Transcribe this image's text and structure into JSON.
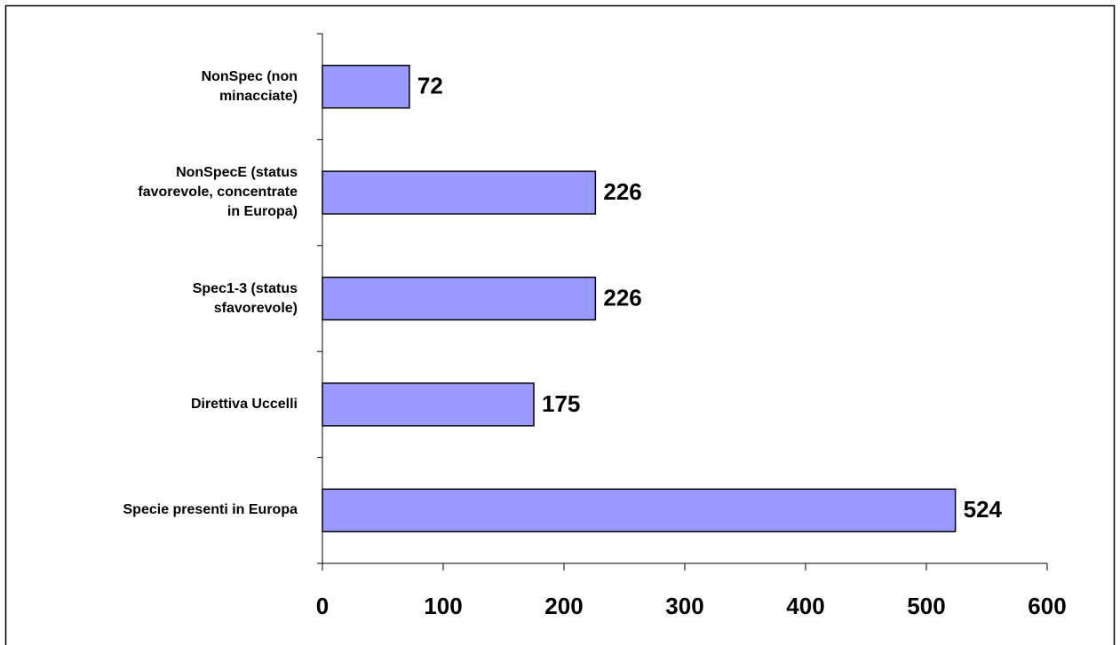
{
  "chart_data": {
    "type": "bar",
    "orientation": "horizontal",
    "categories": [
      "NonSpec (non\nminacciate)",
      "NonSpecE (status\nfavorevole, concentrate\nin Europa)",
      "Spec1-3 (status\nsfavorevole)",
      "Direttiva Uccelli",
      "Specie presenti in Europa"
    ],
    "values": [
      72,
      226,
      226,
      175,
      524
    ],
    "color": "#9999ff",
    "xlim": [
      0,
      600
    ],
    "xticks": [
      0,
      100,
      200,
      300,
      400,
      500,
      600
    ]
  }
}
